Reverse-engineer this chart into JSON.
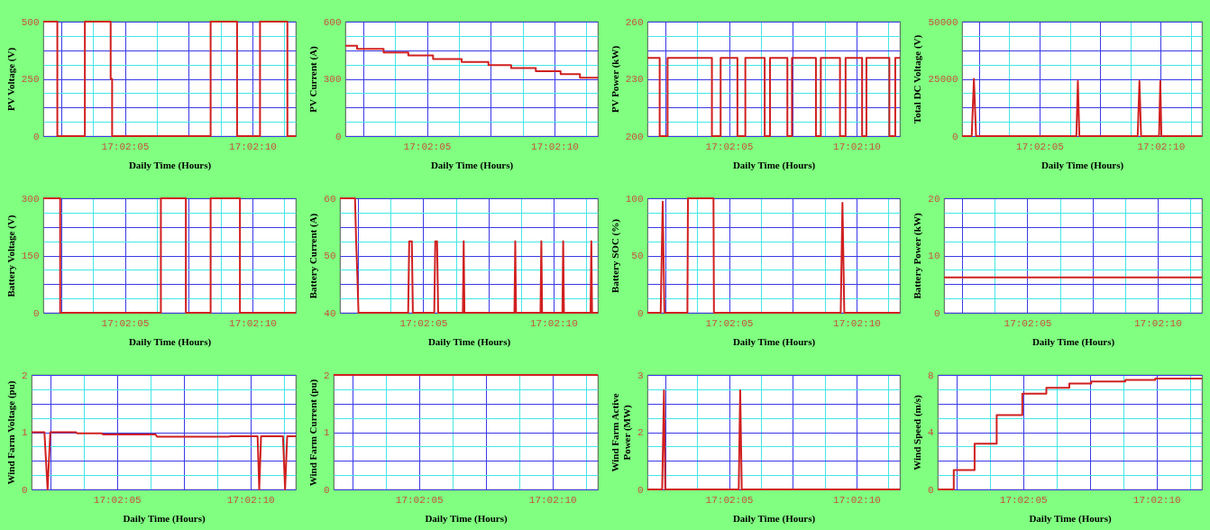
{
  "chart_data": [
    {
      "type": "step",
      "xlabel": "Daily Time (Hours)",
      "ylabel": "PV Voltage (V)",
      "grid": true,
      "xlim": [
        17.033833,
        17.036583
      ],
      "ylim": [
        0,
        500
      ],
      "xticks": [
        {
          "value": 17.034028,
          "label": null
        },
        {
          "value": 17.034375,
          "label": null
        },
        {
          "value": 17.034722,
          "label": "17:02:05"
        },
        {
          "value": 17.035069,
          "label": null
        },
        {
          "value": 17.035417,
          "label": null
        },
        {
          "value": 17.035764,
          "label": null
        },
        {
          "value": 17.036111,
          "label": "17:02:10"
        },
        {
          "value": 17.036458,
          "label": null
        }
      ],
      "yticks": [
        0,
        {
          "value": 62.5,
          "label": null
        },
        {
          "value": 125,
          "label": null
        },
        {
          "value": 187.5,
          "label": null
        },
        250,
        {
          "value": 312.5,
          "label": null
        },
        {
          "value": 375,
          "label": null
        },
        {
          "value": 437.5,
          "label": null
        },
        500
      ],
      "series": [
        {
          "color": "#d02020",
          "x": [
            17.033833,
            17.033986,
            17.034286,
            17.034567,
            17.034583,
            17.035656,
            17.035944,
            17.036194,
            17.036492,
            17.036583
          ],
          "values": [
            500,
            0,
            500,
            250,
            0,
            500,
            0,
            500,
            0,
            0
          ]
        }
      ]
    },
    {
      "type": "step",
      "xlabel": "Daily Time (Hours)",
      "ylabel": "PV Current (A)",
      "grid": true,
      "xlim": [
        17.033833,
        17.036583
      ],
      "ylim": [
        0,
        600
      ],
      "xticks": [
        {
          "value": 17.034028,
          "label": null
        },
        {
          "value": 17.034375,
          "label": null
        },
        {
          "value": 17.034722,
          "label": "17:02:05"
        },
        {
          "value": 17.035069,
          "label": null
        },
        {
          "value": 17.035417,
          "label": null
        },
        {
          "value": 17.035764,
          "label": null
        },
        {
          "value": 17.036111,
          "label": "17:02:10"
        },
        {
          "value": 17.036458,
          "label": null
        }
      ],
      "yticks": [
        0,
        {
          "value": 75,
          "label": null
        },
        {
          "value": 150,
          "label": null
        },
        {
          "value": 225,
          "label": null
        },
        300,
        {
          "value": 375,
          "label": null
        },
        {
          "value": 450,
          "label": null
        },
        {
          "value": 525,
          "label": null
        },
        600
      ],
      "series": [
        {
          "color": "#d02020",
          "x": [
            17.033833,
            17.033961,
            17.03425,
            17.034519,
            17.034789,
            17.0351,
            17.035392,
            17.035639,
            17.035908,
            17.036178,
            17.036389,
            17.036583
          ],
          "values": [
            474,
            457,
            438,
            423,
            404,
            389,
            372,
            357,
            340,
            325,
            306,
            306
          ]
        }
      ]
    },
    {
      "type": "step",
      "xlabel": "Daily Time (Hours)",
      "ylabel": "PV Power (kW)",
      "grid": true,
      "xlim": [
        17.033833,
        17.036583
      ],
      "ylim": [
        200,
        260
      ],
      "xticks": [
        {
          "value": 17.034028,
          "label": null
        },
        {
          "value": 17.034375,
          "label": null
        },
        {
          "value": 17.034722,
          "label": "17:02:05"
        },
        {
          "value": 17.035069,
          "label": null
        },
        {
          "value": 17.035417,
          "label": null
        },
        {
          "value": 17.035764,
          "label": null
        },
        {
          "value": 17.036111,
          "label": "17:02:10"
        },
        {
          "value": 17.036458,
          "label": null
        }
      ],
      "yticks": [
        200,
        {
          "value": 207.5,
          "label": null
        },
        {
          "value": 215,
          "label": null
        },
        {
          "value": 222.5,
          "label": null
        },
        230,
        {
          "value": 237.5,
          "label": null
        },
        {
          "value": 245,
          "label": null
        },
        {
          "value": 252.5,
          "label": null
        },
        260
      ],
      "series": [
        {
          "color": "#d02020",
          "x": [
            17.033833,
            17.033967,
            17.034053,
            17.034536,
            17.034631,
            17.034814,
            17.0349,
            17.035111,
            17.035169,
            17.035358,
            17.035408,
            17.035669,
            17.035722,
            17.035931,
            17.035992,
            17.036172,
            17.036219,
            17.036469,
            17.036533,
            17.036583
          ],
          "values": [
            241,
            200,
            241,
            200,
            241,
            200,
            241,
            200,
            241,
            200,
            241,
            200,
            241,
            200,
            241,
            200,
            241,
            200,
            241,
            241
          ]
        }
      ]
    },
    {
      "type": "line",
      "xlabel": "Daily Time (Hours)",
      "ylabel": "Total DC Voltage (V)",
      "grid": true,
      "xlim": [
        17.033833,
        17.036583
      ],
      "ylim": [
        0,
        50000
      ],
      "xticks": [
        {
          "value": 17.034028,
          "label": null
        },
        {
          "value": 17.034375,
          "label": null
        },
        {
          "value": 17.034722,
          "label": "17:02:05"
        },
        {
          "value": 17.035069,
          "label": null
        },
        {
          "value": 17.035417,
          "label": null
        },
        {
          "value": 17.035764,
          "label": null
        },
        {
          "value": 17.036111,
          "label": "17:02:10"
        },
        {
          "value": 17.036458,
          "label": null
        }
      ],
      "yticks": [
        0,
        {
          "value": 6250,
          "label": null
        },
        {
          "value": 12500,
          "label": null
        },
        {
          "value": 18750,
          "label": null
        },
        25000,
        {
          "value": 31250,
          "label": null
        },
        {
          "value": 37500,
          "label": null
        },
        {
          "value": 43750,
          "label": null
        },
        50000
      ],
      "series": [
        {
          "color": "#d02020",
          "x": [
            17.033833,
            17.033944,
            17.033969,
            17.033994,
            17.035144,
            17.035161,
            17.035178,
            17.035847,
            17.035867,
            17.035886,
            17.036092,
            17.036106,
            17.036119,
            17.036583
          ],
          "values": [
            0,
            0,
            25000,
            0,
            0,
            24000,
            0,
            0,
            24000,
            0,
            0,
            24000,
            0,
            0
          ]
        }
      ]
    },
    {
      "type": "step",
      "xlabel": "Daily Time (Hours)",
      "ylabel": "Battery Voltage (V)",
      "grid": true,
      "xlim": [
        17.033833,
        17.036583
      ],
      "ylim": [
        0,
        300
      ],
      "xticks": [
        {
          "value": 17.034028,
          "label": null
        },
        {
          "value": 17.034375,
          "label": null
        },
        {
          "value": 17.034722,
          "label": "17:02:05"
        },
        {
          "value": 17.035069,
          "label": null
        },
        {
          "value": 17.035417,
          "label": null
        },
        {
          "value": 17.035764,
          "label": null
        },
        {
          "value": 17.036111,
          "label": "17:02:10"
        },
        {
          "value": 17.036458,
          "label": null
        }
      ],
      "yticks": [
        0,
        {
          "value": 37.5,
          "label": null
        },
        {
          "value": 75,
          "label": null
        },
        {
          "value": 112.5,
          "label": null
        },
        150,
        {
          "value": 187.5,
          "label": null
        },
        {
          "value": 225,
          "label": null
        },
        {
          "value": 262.5,
          "label": null
        },
        300
      ],
      "series": [
        {
          "color": "#d02020",
          "x": [
            17.033833,
            17.034017,
            17.035114,
            17.035386,
            17.035656,
            17.035975,
            17.036583
          ],
          "values": [
            300,
            0,
            300,
            0,
            300,
            0,
            0
          ]
        }
      ]
    },
    {
      "type": "line",
      "xlabel": "Daily Time (Hours)",
      "ylabel": "Battery Current (A)",
      "grid": true,
      "xlim": [
        17.033833,
        17.036583
      ],
      "ylim": [
        40,
        60
      ],
      "xticks": [
        {
          "value": 17.034028,
          "label": null
        },
        {
          "value": 17.034375,
          "label": null
        },
        {
          "value": 17.034722,
          "label": "17:02:05"
        },
        {
          "value": 17.035069,
          "label": null
        },
        {
          "value": 17.035417,
          "label": null
        },
        {
          "value": 17.035764,
          "label": null
        },
        {
          "value": 17.036111,
          "label": "17:02:10"
        },
        {
          "value": 17.036458,
          "label": null
        }
      ],
      "yticks": [
        40,
        {
          "value": 42.5,
          "label": null
        },
        {
          "value": 45,
          "label": null
        },
        {
          "value": 47.5,
          "label": null
        },
        50,
        {
          "value": 52.5,
          "label": null
        },
        {
          "value": 55,
          "label": null
        },
        {
          "value": 57.5,
          "label": null
        },
        60
      ],
      "series": [
        {
          "color": "#d02020",
          "x": [
            17.033833,
            17.033994,
            17.034006,
            17.034022,
            17.034031,
            17.034561,
            17.034572,
            17.0346,
            17.034611,
            17.034839,
            17.03485,
            17.034869,
            17.034881,
            17.035144,
            17.035153,
            17.035161,
            17.035694,
            17.035703,
            17.035711,
            17.035972,
            17.035981,
            17.035989,
            17.036206,
            17.036214,
            17.036222,
            17.036506,
            17.036514,
            17.036522,
            17.036583
          ],
          "values": [
            60,
            60,
            52.5,
            45,
            40,
            40,
            52.5,
            52.5,
            40,
            40,
            52.5,
            52.5,
            40,
            40,
            52.5,
            40,
            40,
            52.5,
            40,
            40,
            52.5,
            40,
            40,
            52.5,
            40,
            40,
            52.5,
            40,
            40
          ]
        }
      ]
    },
    {
      "type": "line",
      "xlabel": "Daily Time (Hours)",
      "ylabel": "Battery SOC (%)",
      "grid": true,
      "xlim": [
        17.033833,
        17.036583
      ],
      "ylim": [
        0,
        100
      ],
      "xticks": [
        {
          "value": 17.034028,
          "label": null
        },
        {
          "value": 17.034375,
          "label": null
        },
        {
          "value": 17.034722,
          "label": "17:02:05"
        },
        {
          "value": 17.035069,
          "label": null
        },
        {
          "value": 17.035417,
          "label": null
        },
        {
          "value": 17.035764,
          "label": null
        },
        {
          "value": 17.036111,
          "label": "17:02:10"
        },
        {
          "value": 17.036458,
          "label": null
        }
      ],
      "yticks": [
        0,
        {
          "value": 12.5,
          "label": null
        },
        {
          "value": 25,
          "label": null
        },
        {
          "value": 37.5,
          "label": null
        },
        50,
        {
          "value": 62.5,
          "label": null
        },
        {
          "value": 75,
          "label": null
        },
        {
          "value": 87.5,
          "label": null
        },
        100
      ],
      "series": [
        {
          "color": "#d02020",
          "x": [
            17.033833,
            17.033978,
            17.034,
            17.034019,
            17.034269,
            17.034275,
            17.034553,
            17.034558,
            17.035939,
            17.035958,
            17.035978,
            17.036583
          ],
          "values": [
            0,
            0,
            97,
            0,
            0,
            100,
            100,
            0,
            0,
            96,
            0,
            0
          ]
        }
      ]
    },
    {
      "type": "line",
      "xlabel": "Daily Time (Hours)",
      "ylabel": "Battery Power (kW)",
      "grid": true,
      "xlim": [
        17.033833,
        17.036583
      ],
      "ylim": [
        0,
        20
      ],
      "xticks": [
        {
          "value": 17.034028,
          "label": null
        },
        {
          "value": 17.034375,
          "label": null
        },
        {
          "value": 17.034722,
          "label": "17:02:05"
        },
        {
          "value": 17.035069,
          "label": null
        },
        {
          "value": 17.035417,
          "label": null
        },
        {
          "value": 17.035764,
          "label": null
        },
        {
          "value": 17.036111,
          "label": "17:02:10"
        },
        {
          "value": 17.036458,
          "label": null
        }
      ],
      "yticks": [
        0,
        {
          "value": 2.5,
          "label": null
        },
        {
          "value": 5,
          "label": null
        },
        {
          "value": 7.5,
          "label": null
        },
        10,
        {
          "value": 12.5,
          "label": null
        },
        {
          "value": 15,
          "label": null
        },
        {
          "value": 17.5,
          "label": null
        },
        20
      ],
      "series": [
        {
          "color": "#d02020",
          "x": [
            17.033833,
            17.036583
          ],
          "values": [
            6.2,
            6.2
          ]
        }
      ]
    },
    {
      "type": "line",
      "xlabel": "Daily Time (Hours)",
      "ylabel": "Wind Farm Voltage (pu)",
      "grid": true,
      "xlim": [
        17.033833,
        17.036583
      ],
      "ylim": [
        0,
        2
      ],
      "xticks": [
        {
          "value": 17.034028,
          "label": null
        },
        {
          "value": 17.034375,
          "label": null
        },
        {
          "value": 17.034722,
          "label": "17:02:05"
        },
        {
          "value": 17.035069,
          "label": null
        },
        {
          "value": 17.035417,
          "label": null
        },
        {
          "value": 17.035764,
          "label": null
        },
        {
          "value": 17.036111,
          "label": "17:02:10"
        },
        {
          "value": 17.036458,
          "label": null
        }
      ],
      "yticks": [
        0,
        {
          "value": 0.25,
          "label": null
        },
        {
          "value": 0.5,
          "label": null
        },
        {
          "value": 0.75,
          "label": null
        },
        1,
        {
          "value": 1.25,
          "label": null
        },
        {
          "value": 1.5,
          "label": null
        },
        {
          "value": 1.75,
          "label": null
        },
        2
      ],
      "series": [
        {
          "color": "#d02020",
          "x": [
            17.033833,
            17.033967,
            17.034,
            17.034028,
            17.034297,
            17.034306,
            17.034567,
            17.034575,
            17.035125,
            17.035139,
            17.035889,
            17.035903,
            17.036186,
            17.036203,
            17.036222,
            17.03645,
            17.036472,
            17.036494,
            17.036583
          ],
          "values": [
            1,
            1,
            0,
            1,
            1,
            0.98,
            0.98,
            0.96,
            0.96,
            0.92,
            0.92,
            0.93,
            0.93,
            0,
            0.93,
            0.93,
            0,
            0.93,
            0.93
          ]
        }
      ]
    },
    {
      "type": "line",
      "xlabel": "Daily Time (Hours)",
      "ylabel": "Wind Farm Current (pu)",
      "grid": true,
      "xlim": [
        17.033833,
        17.036583
      ],
      "ylim": [
        0,
        2
      ],
      "xticks": [
        {
          "value": 17.034028,
          "label": null
        },
        {
          "value": 17.034375,
          "label": null
        },
        {
          "value": 17.034722,
          "label": "17:02:05"
        },
        {
          "value": 17.035069,
          "label": null
        },
        {
          "value": 17.035417,
          "label": null
        },
        {
          "value": 17.035764,
          "label": null
        },
        {
          "value": 17.036111,
          "label": "17:02:10"
        },
        {
          "value": 17.036458,
          "label": null
        }
      ],
      "yticks": [
        0,
        {
          "value": 0.25,
          "label": null
        },
        {
          "value": 0.5,
          "label": null
        },
        {
          "value": 0.75,
          "label": null
        },
        1,
        {
          "value": 1.25,
          "label": null
        },
        {
          "value": 1.5,
          "label": null
        },
        {
          "value": 1.75,
          "label": null
        },
        2
      ],
      "series": [
        {
          "color": "#d02020",
          "x": [
            17.033833,
            17.036583
          ],
          "values": [
            2,
            2
          ]
        }
      ]
    },
    {
      "type": "line",
      "xlabel": "Daily Time (Hours)",
      "ylabel": "Wind Farm Active Power (MW)",
      "grid": true,
      "xlim": [
        17.033833,
        17.036583
      ],
      "ylim": [
        0,
        3
      ],
      "xticks": [
        {
          "value": 17.034028,
          "label": null
        },
        {
          "value": 17.034375,
          "label": null
        },
        {
          "value": 17.034722,
          "label": "17:02:05"
        },
        {
          "value": 17.035069,
          "label": null
        },
        {
          "value": 17.035417,
          "label": null
        },
        {
          "value": 17.035764,
          "label": null
        },
        {
          "value": 17.036111,
          "label": "17:02:10"
        },
        {
          "value": 17.036458,
          "label": null
        }
      ],
      "yticks": [
        0,
        {
          "value": 0.375,
          "label": null
        },
        {
          "value": 0.75,
          "label": null
        },
        {
          "value": 1.125,
          "label": null
        },
        {
          "value": 1.5,
          "label": "2"
        },
        {
          "value": 1.875,
          "label": null
        },
        {
          "value": 2.25,
          "label": null
        },
        {
          "value": 2.625,
          "label": null
        },
        3
      ],
      "series": [
        {
          "color": "#d02020",
          "x": [
            17.033833,
            17.033994,
            17.034014,
            17.034028,
            17.034828,
            17.034844,
            17.034861,
            17.036583
          ],
          "values": [
            0,
            0,
            2.6,
            0,
            0,
            2.6,
            0,
            0
          ]
        }
      ]
    },
    {
      "type": "step",
      "xlabel": "Daily Time (Hours)",
      "ylabel": "Wind Speed (m/s)",
      "grid": true,
      "xlim": [
        17.033833,
        17.036583
      ],
      "ylim": [
        0,
        8
      ],
      "xticks": [
        {
          "value": 17.034028,
          "label": null
        },
        {
          "value": 17.034375,
          "label": null
        },
        {
          "value": 17.034722,
          "label": "17:02:05"
        },
        {
          "value": 17.035069,
          "label": null
        },
        {
          "value": 17.035417,
          "label": null
        },
        {
          "value": 17.035764,
          "label": null
        },
        {
          "value": 17.036111,
          "label": "17:02:10"
        },
        {
          "value": 17.036458,
          "label": null
        }
      ],
      "yticks": [
        0,
        {
          "value": 1,
          "label": null
        },
        {
          "value": 2,
          "label": null
        },
        {
          "value": 3,
          "label": null
        },
        4,
        {
          "value": 5,
          "label": null
        },
        {
          "value": 6,
          "label": null
        },
        {
          "value": 7,
          "label": null
        },
        8
      ],
      "series": [
        {
          "color": "#d02020",
          "x": [
            17.033833,
            17.034,
            17.034217,
            17.034447,
            17.034714,
            17.034964,
            17.035203,
            17.035431,
            17.035786,
            17.036097,
            17.036583
          ],
          "values": [
            0,
            1.35,
            3.2,
            5.2,
            6.7,
            7.1,
            7.4,
            7.55,
            7.65,
            7.75,
            7.75
          ]
        }
      ]
    }
  ]
}
